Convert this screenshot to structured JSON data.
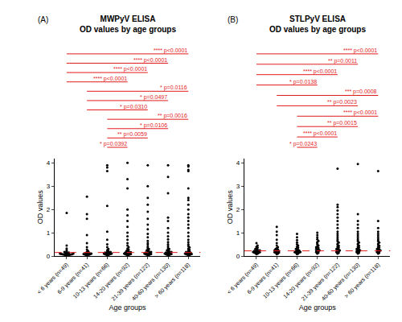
{
  "chart_data": [
    {
      "type": "scatter",
      "panel": "(A)",
      "title": "MWPyV ELISA",
      "subtitle": "OD values by age groups",
      "x_label": "Age groups",
      "y_label": "OD values",
      "categories": [
        "< 6 years (n=49)",
        "6-9 years (n=41)",
        "10-13 years (n=66)",
        "14-20 years (n=92)",
        "21-39 years (n=122)",
        "40-60 years (n=130)",
        "> 60 years (n=118)"
      ],
      "values": [
        [
          0.02,
          0.03,
          0.03,
          0.04,
          0.04,
          0.05,
          0.05,
          0.06,
          0.06,
          0.07,
          0.07,
          0.08,
          0.08,
          0.09,
          0.1,
          0.1,
          0.11,
          0.12,
          0.13,
          0.15,
          0.17,
          0.2,
          0.25,
          0.32,
          0.45,
          1.85
        ],
        [
          0.03,
          0.04,
          0.05,
          0.05,
          0.06,
          0.07,
          0.08,
          0.09,
          0.1,
          0.11,
          0.12,
          0.13,
          0.15,
          0.18,
          0.22,
          0.28,
          0.38,
          0.55,
          0.9,
          1.6,
          1.8,
          2.55
        ],
        [
          0.03,
          0.04,
          0.05,
          0.06,
          0.07,
          0.08,
          0.09,
          0.1,
          0.1,
          0.11,
          0.12,
          0.13,
          0.14,
          0.15,
          0.17,
          0.19,
          0.22,
          0.25,
          0.3,
          0.38,
          0.5,
          0.7,
          1.05,
          2.15,
          3.65,
          3.8,
          3.9
        ],
        [
          0.04,
          0.05,
          0.06,
          0.07,
          0.08,
          0.09,
          0.1,
          0.11,
          0.12,
          0.13,
          0.14,
          0.15,
          0.16,
          0.18,
          0.2,
          0.22,
          0.25,
          0.28,
          0.32,
          0.38,
          0.45,
          0.55,
          0.7,
          0.85,
          1.0,
          1.25,
          1.5,
          1.75,
          2.0,
          2.9,
          3.3,
          4.0
        ],
        [
          0.04,
          0.05,
          0.06,
          0.07,
          0.08,
          0.09,
          0.1,
          0.11,
          0.12,
          0.13,
          0.14,
          0.15,
          0.17,
          0.19,
          0.21,
          0.24,
          0.27,
          0.3,
          0.35,
          0.4,
          0.48,
          0.55,
          0.65,
          0.8,
          0.95,
          1.15,
          1.35,
          1.6,
          1.9,
          2.2,
          2.5,
          3.0,
          3.9
        ],
        [
          0.04,
          0.05,
          0.06,
          0.07,
          0.08,
          0.09,
          0.1,
          0.11,
          0.12,
          0.13,
          0.14,
          0.15,
          0.17,
          0.19,
          0.21,
          0.24,
          0.27,
          0.3,
          0.35,
          0.42,
          0.5,
          0.6,
          0.72,
          0.85,
          1.0,
          1.2,
          1.5,
          1.65,
          2.7,
          3.4,
          3.9
        ],
        [
          0.04,
          0.05,
          0.06,
          0.07,
          0.08,
          0.09,
          0.1,
          0.11,
          0.12,
          0.13,
          0.15,
          0.17,
          0.19,
          0.22,
          0.25,
          0.28,
          0.32,
          0.37,
          0.43,
          0.5,
          0.6,
          0.7,
          0.85,
          1.0,
          1.2,
          1.35,
          1.5,
          1.65,
          1.8,
          2.0,
          2.2,
          2.4,
          2.5,
          2.9,
          3.65,
          3.7,
          3.85,
          3.9
        ]
      ],
      "color": "#000000",
      "marker": "circle",
      "cutoff": 0.15,
      "ylim": [
        0,
        4.2
      ],
      "yticks": [
        0,
        1,
        2,
        3,
        4
      ],
      "grid": false,
      "comparisons": [
        {
          "from": "< 6 years (n=49)",
          "to": "> 60 years (n=118)",
          "label": "**** p<0.0001"
        },
        {
          "from": "< 6 years (n=49)",
          "to": "40-60 years (n=130)",
          "label": "**** p<0.0001"
        },
        {
          "from": "< 6 years (n=49)",
          "to": "21-39 years (n=122)",
          "label": "**** p<0.0001"
        },
        {
          "from": "< 6 years (n=49)",
          "to": "14-20 years (n=92)",
          "label": "**** p<0.0001"
        },
        {
          "from": "6-9 years (n=41)",
          "to": "> 60 years (n=118)",
          "label": "* p=0.0116"
        },
        {
          "from": "6-9 years (n=41)",
          "to": "40-60 years (n=130)",
          "label": "* p=0.0497"
        },
        {
          "from": "6-9 years (n=41)",
          "to": "21-39 years (n=122)",
          "label": "* p=0.0310"
        },
        {
          "from": "10-13 years (n=66)",
          "to": "> 60 years (n=118)",
          "label": "** p=0.0016"
        },
        {
          "from": "10-13 years (n=66)",
          "to": "40-60 years (n=130)",
          "label": "* p=0.0106"
        },
        {
          "from": "10-13 years (n=66)",
          "to": "21-39 years (n=122)",
          "label": "** p=0.0059"
        },
        {
          "from": "10-13 years (n=66)",
          "to": "14-20 years (n=92)",
          "label": "* p=0.0392"
        }
      ]
    },
    {
      "type": "scatter",
      "panel": "(B)",
      "title": "STLPyV ELISA",
      "subtitle": "OD values by age groups",
      "x_label": "Age groups",
      "y_label": "OD values",
      "categories": [
        "< 6 years (n=49)",
        "6-9 years (n=41)",
        "10-13 years (n=66)",
        "14-20 years (n=92)",
        "21-39 years (n=122)",
        "40-60 years (n=130)",
        "> 60 years (n=118)"
      ],
      "values": [
        [
          0.08,
          0.1,
          0.11,
          0.12,
          0.13,
          0.14,
          0.15,
          0.16,
          0.17,
          0.18,
          0.19,
          0.2,
          0.21,
          0.22,
          0.24,
          0.26,
          0.28,
          0.3,
          0.33,
          0.36,
          0.4,
          0.45,
          0.55
        ],
        [
          0.08,
          0.1,
          0.12,
          0.13,
          0.14,
          0.15,
          0.16,
          0.18,
          0.19,
          0.2,
          0.22,
          0.24,
          0.26,
          0.28,
          0.3,
          0.34,
          0.38,
          0.45,
          0.55,
          0.7,
          0.9,
          1.05,
          1.25
        ],
        [
          0.08,
          0.1,
          0.12,
          0.13,
          0.14,
          0.15,
          0.16,
          0.17,
          0.18,
          0.2,
          0.21,
          0.23,
          0.25,
          0.27,
          0.3,
          0.33,
          0.36,
          0.4,
          0.45,
          0.5,
          0.58,
          0.68,
          0.8,
          0.95
        ],
        [
          0.1,
          0.12,
          0.14,
          0.16,
          0.18,
          0.2,
          0.22,
          0.24,
          0.26,
          0.28,
          0.3,
          0.32,
          0.35,
          0.38,
          0.41,
          0.45,
          0.5,
          0.55,
          0.6,
          0.65,
          0.72,
          0.8,
          0.9,
          1.0
        ],
        [
          0.1,
          0.12,
          0.14,
          0.16,
          0.18,
          0.2,
          0.22,
          0.24,
          0.26,
          0.28,
          0.3,
          0.33,
          0.36,
          0.4,
          0.44,
          0.48,
          0.53,
          0.58,
          0.64,
          0.7,
          0.78,
          0.86,
          0.95,
          1.05,
          1.2,
          1.35,
          1.5,
          1.65,
          1.8,
          1.95,
          2.1,
          2.2,
          3.75
        ],
        [
          0.1,
          0.12,
          0.14,
          0.16,
          0.18,
          0.2,
          0.22,
          0.24,
          0.26,
          0.28,
          0.3,
          0.33,
          0.36,
          0.4,
          0.44,
          0.48,
          0.53,
          0.58,
          0.64,
          0.7,
          0.78,
          0.86,
          0.95,
          1.05,
          1.2,
          1.35,
          1.5,
          1.8,
          3.95
        ],
        [
          0.1,
          0.12,
          0.14,
          0.16,
          0.18,
          0.2,
          0.22,
          0.24,
          0.26,
          0.28,
          0.3,
          0.33,
          0.36,
          0.4,
          0.44,
          0.48,
          0.53,
          0.58,
          0.64,
          0.7,
          0.78,
          0.86,
          0.95,
          1.05,
          1.2,
          1.5,
          3.65
        ]
      ],
      "color": "#000000",
      "marker": "circle",
      "cutoff": 0.22,
      "ylim": [
        0,
        4.2
      ],
      "yticks": [
        0,
        1,
        2,
        3,
        4
      ],
      "grid": false,
      "comparisons": [
        {
          "from": "< 6 years (n=49)",
          "to": "> 60 years (n=118)",
          "label": "**** p<0.0001"
        },
        {
          "from": "< 6 years (n=49)",
          "to": "40-60 years (n=130)",
          "label": "** p=0.0011"
        },
        {
          "from": "< 6 years (n=49)",
          "to": "21-39 years (n=122)",
          "label": "**** p<0.0001"
        },
        {
          "from": "< 6 years (n=49)",
          "to": "14-20 years (n=92)",
          "label": "* p=0.0138"
        },
        {
          "from": "6-9 years (n=41)",
          "to": "> 60 years (n=118)",
          "label": "*** p=0.0008"
        },
        {
          "from": "6-9 years (n=41)",
          "to": "40-60 years (n=130)",
          "label": "** p=0.0023"
        },
        {
          "from": "10-13 years (n=66)",
          "to": "> 60 years (n=118)",
          "label": "**** p<0.0001"
        },
        {
          "from": "10-13 years (n=66)",
          "to": "40-60 years (n=130)",
          "label": "** p=0.0015"
        },
        {
          "from": "10-13 years (n=66)",
          "to": "21-39 years (n=122)",
          "label": "**** p<0.0001"
        },
        {
          "from": "10-13 years (n=66)",
          "to": "14-20 years (n=92)",
          "label": "* p=0.0243"
        }
      ]
    }
  ]
}
